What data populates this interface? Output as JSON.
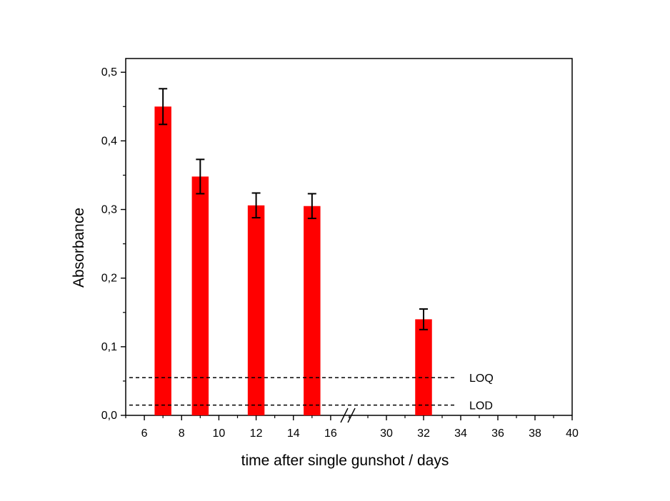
{
  "chart_data": {
    "type": "bar",
    "title": "",
    "xlabel": "time after single gunshot / days",
    "ylabel": "Absorbance",
    "axis_break": "//",
    "bar_color": "#ff0000",
    "x_segments": [
      {
        "xlim": [
          5,
          17
        ],
        "ticks": [
          "6",
          "8",
          "10",
          "12",
          "14",
          "16"
        ]
      },
      {
        "xlim": [
          28,
          40
        ],
        "ticks": [
          "30",
          "32",
          "34",
          "36",
          "38",
          "40"
        ]
      }
    ],
    "ylim": [
      0,
      0.52
    ],
    "yticks": [
      "0,0",
      "0,1",
      "0,2",
      "0,3",
      "0,4",
      "0,5"
    ],
    "grid": false,
    "series": [
      {
        "x": [
          7,
          9,
          12,
          15,
          32
        ],
        "values": [
          0.45,
          0.348,
          0.306,
          0.305,
          0.14
        ],
        "error": [
          0.026,
          0.025,
          0.018,
          0.018,
          0.015
        ]
      }
    ],
    "reference_lines": [
      {
        "label": "LOQ",
        "value": 0.055
      },
      {
        "label": "LOD",
        "value": 0.015
      }
    ]
  }
}
